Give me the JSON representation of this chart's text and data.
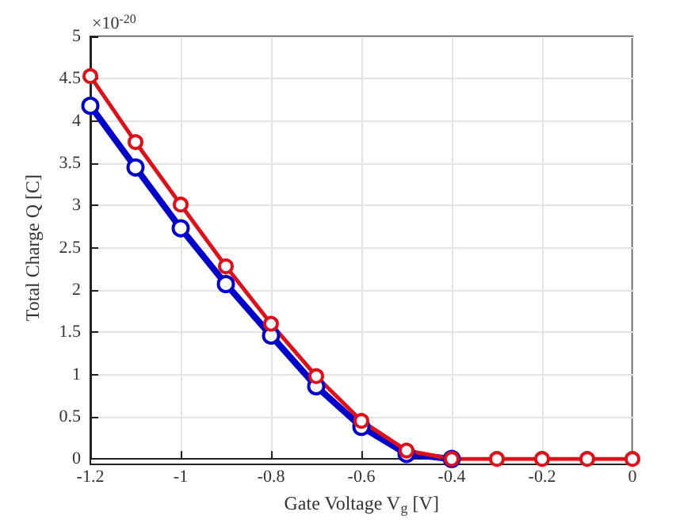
{
  "chart_data": {
    "type": "line",
    "xlabel": "Gate Voltage V$_{g}$ [V]",
    "ylabel": "Total Charge Q [C]",
    "annotations": [
      "×10$^{-20}$"
    ],
    "x": [
      -1.2,
      -1.1,
      -1.0,
      -0.9,
      -0.8,
      -0.7,
      -0.6,
      -0.5,
      -0.4,
      -0.3,
      -0.2,
      -0.1,
      0
    ],
    "series": [
      {
        "color": "#0000cc",
        "values": [
          4.18,
          3.45,
          2.73,
          2.07,
          1.46,
          0.86,
          0.38,
          0.06,
          0,
          null,
          null,
          null,
          null
        ]
      },
      {
        "color": "#e0101a",
        "values": [
          4.53,
          3.75,
          3.01,
          2.28,
          1.6,
          0.98,
          0.45,
          0.1,
          0,
          0,
          0,
          0,
          0
        ]
      }
    ],
    "xlim": [
      -1.2,
      0
    ],
    "xticks": [
      -1.2,
      -1,
      -0.8,
      -0.6,
      -0.4,
      -0.2,
      0
    ],
    "ylim": [
      0,
      5
    ],
    "yticks": [
      0,
      0.5,
      1,
      1.5,
      2,
      2.5,
      3,
      3.5,
      4,
      4.5,
      5
    ],
    "grid": true,
    "marker": "circle",
    "line_style": "solid"
  }
}
